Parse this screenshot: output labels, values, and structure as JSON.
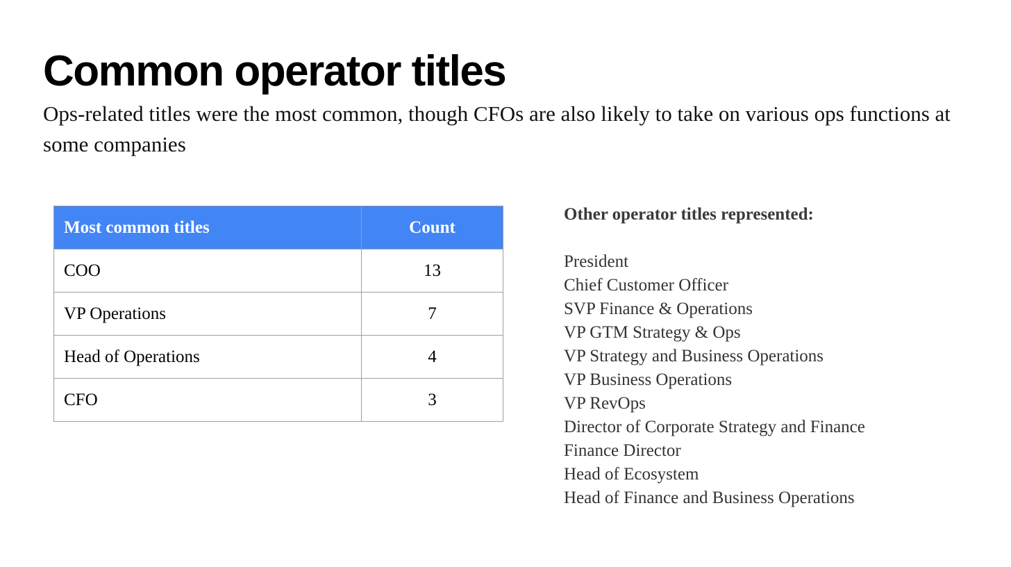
{
  "slide": {
    "title": "Common operator titles",
    "subtitle": "Ops-related titles were the most common, though CFOs are also likely to take on various ops functions at some companies"
  },
  "table": {
    "headers": [
      "Most common titles",
      "Count"
    ],
    "header_color": "#4285f4",
    "rows": [
      {
        "title": "COO",
        "count": "13"
      },
      {
        "title": "VP Operations",
        "count": "7"
      },
      {
        "title": "Head of Operations",
        "count": "4"
      },
      {
        "title": "CFO",
        "count": "3"
      }
    ]
  },
  "other_titles": {
    "heading": "Other operator titles represented:",
    "items": [
      "President",
      "Chief Customer Officer",
      "SVP Finance & Operations",
      "VP GTM Strategy & Ops",
      "VP Strategy and Business Operations",
      "VP Business Operations",
      "VP RevOps",
      "Director of Corporate Strategy and Finance",
      "Finance Director",
      "Head of Ecosystem",
      "Head of Finance and Business Operations"
    ]
  }
}
